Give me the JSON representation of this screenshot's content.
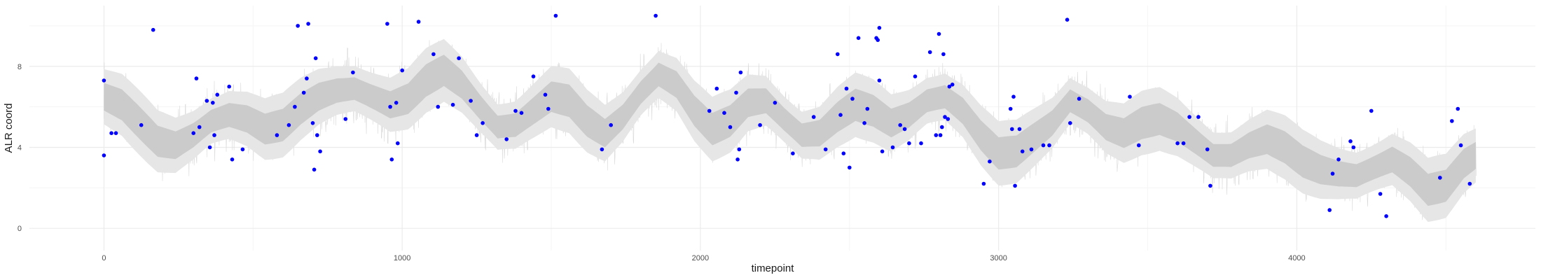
{
  "chart_data": {
    "type": "scatter",
    "title": "",
    "xlabel": "timepoint",
    "ylabel": "ALR coord",
    "xlim": [
      -250,
      4800
    ],
    "ylim": [
      -1.1,
      11.0
    ],
    "x_ticks": [
      0,
      1000,
      2000,
      3000,
      4000
    ],
    "y_ticks": [
      0,
      4,
      8
    ],
    "grid": true,
    "legend": "none",
    "colors": {
      "points": "#0000ff",
      "outer_band": "#e6e6e6",
      "inner_band": "#cbcbcb",
      "noise": "#d9d9d9",
      "grid_major": "#ebebeb",
      "grid_minor": "#f5f5f5"
    },
    "band": {
      "x": [
        0,
        60,
        120,
        180,
        240,
        300,
        360,
        420,
        480,
        540,
        600,
        660,
        720,
        780,
        840,
        900,
        960,
        1020,
        1080,
        1140,
        1200,
        1260,
        1320,
        1380,
        1440,
        1500,
        1560,
        1620,
        1680,
        1740,
        1800,
        1860,
        1920,
        1980,
        2040,
        2100,
        2160,
        2220,
        2280,
        2340,
        2400,
        2460,
        2520,
        2580,
        2640,
        2700,
        2760,
        2820,
        2880,
        2940,
        3000,
        3060,
        3120,
        3180,
        3240,
        3300,
        3360,
        3420,
        3480,
        3540,
        3600,
        3660,
        3720,
        3780,
        3840,
        3900,
        3960,
        4020,
        4080,
        4140,
        4200,
        4260,
        4320,
        4380,
        4440,
        4500,
        4560,
        4600
      ],
      "median": [
        6.5,
        6.1,
        5.2,
        4.3,
        4.1,
        4.6,
        5.3,
        5.6,
        5.4,
        4.9,
        5.1,
        5.9,
        6.5,
        6.8,
        6.9,
        6.5,
        6.1,
        6.4,
        7.3,
        7.8,
        7.1,
        6.0,
        5.0,
        5.1,
        5.8,
        6.5,
        6.3,
        5.3,
        4.7,
        5.5,
        6.7,
        7.6,
        7.1,
        5.8,
        4.9,
        5.3,
        6.2,
        6.3,
        5.4,
        4.6,
        4.7,
        5.5,
        6.1,
        5.8,
        5.2,
        5.6,
        6.3,
        6.5,
        5.8,
        4.6,
        3.7,
        3.8,
        4.5,
        5.2,
        6.3,
        5.8,
        5.0,
        4.7,
        5.2,
        5.4,
        5.0,
        4.3,
        3.6,
        3.6,
        4.1,
        4.4,
        4.0,
        3.3,
        2.9,
        2.7,
        2.6,
        3.0,
        3.4,
        2.8,
        1.9,
        2.1,
        3.2,
        3.6
      ],
      "inner_half_width": 0.8,
      "outer_half_width": 1.6,
      "noise_amplitude": 2.1
    },
    "points": [
      [
        0,
        7.3
      ],
      [
        0,
        3.6
      ],
      [
        25,
        4.7
      ],
      [
        40,
        4.7
      ],
      [
        125,
        5.1
      ],
      [
        165,
        9.8
      ],
      [
        300,
        4.7
      ],
      [
        310,
        7.4
      ],
      [
        320,
        5.0
      ],
      [
        345,
        6.3
      ],
      [
        355,
        4.0
      ],
      [
        365,
        6.2
      ],
      [
        370,
        4.6
      ],
      [
        380,
        6.6
      ],
      [
        420,
        7.0
      ],
      [
        430,
        3.4
      ],
      [
        465,
        3.9
      ],
      [
        580,
        4.6
      ],
      [
        620,
        5.1
      ],
      [
        640,
        6.0
      ],
      [
        650,
        10.0
      ],
      [
        670,
        6.7
      ],
      [
        680,
        7.4
      ],
      [
        685,
        10.1
      ],
      [
        700,
        5.2
      ],
      [
        705,
        2.9
      ],
      [
        710,
        8.4
      ],
      [
        715,
        4.6
      ],
      [
        725,
        3.8
      ],
      [
        810,
        5.4
      ],
      [
        835,
        7.7
      ],
      [
        950,
        10.1
      ],
      [
        960,
        6.0
      ],
      [
        965,
        3.4
      ],
      [
        980,
        6.2
      ],
      [
        985,
        4.2
      ],
      [
        1000,
        7.8
      ],
      [
        1055,
        10.2
      ],
      [
        1105,
        8.6
      ],
      [
        1120,
        6.0
      ],
      [
        1170,
        6.1
      ],
      [
        1190,
        8.4
      ],
      [
        1230,
        6.3
      ],
      [
        1250,
        4.6
      ],
      [
        1270,
        5.2
      ],
      [
        1350,
        4.4
      ],
      [
        1380,
        5.8
      ],
      [
        1400,
        5.7
      ],
      [
        1440,
        7.5
      ],
      [
        1480,
        6.6
      ],
      [
        1490,
        5.9
      ],
      [
        1515,
        10.5
      ],
      [
        1670,
        3.9
      ],
      [
        1700,
        5.1
      ],
      [
        1850,
        10.5
      ],
      [
        2030,
        5.8
      ],
      [
        2055,
        6.9
      ],
      [
        2080,
        5.7
      ],
      [
        2100,
        5.0
      ],
      [
        2120,
        6.7
      ],
      [
        2125,
        3.4
      ],
      [
        2130,
        3.9
      ],
      [
        2135,
        7.7
      ],
      [
        2200,
        5.1
      ],
      [
        2250,
        6.2
      ],
      [
        2310,
        3.7
      ],
      [
        2380,
        5.5
      ],
      [
        2420,
        3.9
      ],
      [
        2460,
        8.6
      ],
      [
        2470,
        5.6
      ],
      [
        2480,
        3.7
      ],
      [
        2490,
        6.9
      ],
      [
        2500,
        3.0
      ],
      [
        2510,
        6.4
      ],
      [
        2530,
        9.4
      ],
      [
        2550,
        5.2
      ],
      [
        2560,
        5.9
      ],
      [
        2590,
        9.4
      ],
      [
        2595,
        9.3
      ],
      [
        2600,
        9.9
      ],
      [
        2600,
        7.3
      ],
      [
        2610,
        3.8
      ],
      [
        2645,
        4.0
      ],
      [
        2670,
        5.1
      ],
      [
        2685,
        4.9
      ],
      [
        2700,
        4.2
      ],
      [
        2720,
        7.5
      ],
      [
        2740,
        4.2
      ],
      [
        2770,
        8.7
      ],
      [
        2790,
        4.6
      ],
      [
        2800,
        9.6
      ],
      [
        2805,
        4.6
      ],
      [
        2810,
        5.0
      ],
      [
        2815,
        8.6
      ],
      [
        2820,
        5.5
      ],
      [
        2830,
        5.4
      ],
      [
        2835,
        7.0
      ],
      [
        2845,
        7.1
      ],
      [
        2950,
        2.2
      ],
      [
        2970,
        3.3
      ],
      [
        3040,
        5.9
      ],
      [
        3045,
        4.9
      ],
      [
        3050,
        6.5
      ],
      [
        3055,
        2.1
      ],
      [
        3070,
        4.9
      ],
      [
        3080,
        3.8
      ],
      [
        3110,
        3.9
      ],
      [
        3150,
        4.1
      ],
      [
        3170,
        4.1
      ],
      [
        3230,
        10.3
      ],
      [
        3240,
        5.2
      ],
      [
        3270,
        6.4
      ],
      [
        3440,
        6.5
      ],
      [
        3470,
        4.1
      ],
      [
        3600,
        4.2
      ],
      [
        3620,
        4.2
      ],
      [
        3640,
        5.5
      ],
      [
        3670,
        5.5
      ],
      [
        3700,
        3.9
      ],
      [
        3710,
        2.1
      ],
      [
        4110,
        0.9
      ],
      [
        4120,
        2.7
      ],
      [
        4140,
        3.4
      ],
      [
        4180,
        4.3
      ],
      [
        4190,
        4.0
      ],
      [
        4250,
        5.8
      ],
      [
        4280,
        1.7
      ],
      [
        4300,
        0.6
      ],
      [
        4480,
        2.5
      ],
      [
        4520,
        5.3
      ],
      [
        4540,
        5.9
      ],
      [
        4550,
        4.1
      ],
      [
        4580,
        2.2
      ]
    ]
  }
}
